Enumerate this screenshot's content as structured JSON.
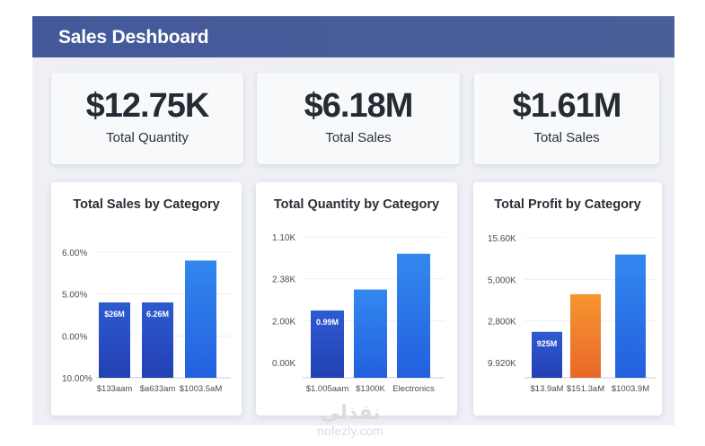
{
  "header": {
    "title": "Sales Deshboard"
  },
  "kpis": [
    {
      "value": "$12.75K",
      "label": "Total Quantity"
    },
    {
      "value": "$6.18M",
      "label": "Total Sales"
    },
    {
      "value": "$1.61M",
      "label": "Total Sales"
    }
  ],
  "colors": {
    "header_bg": "#475c97",
    "bar_dark_blue": "#2a4fc4",
    "bar_blue": "#2f7be6",
    "bar_orange": "#f08a2c",
    "panel_bg": "#eef0f5"
  },
  "chart_data": [
    {
      "type": "bar",
      "title": "Total Sales by Category",
      "xlabel": "",
      "ylabel": "",
      "y_ticks": [
        "10.00%",
        "0.00%",
        "5.00%",
        "6.00%"
      ],
      "ylim": [
        0,
        3
      ],
      "grid": true,
      "categories": [
        "$133aam",
        "$a633am",
        "$1003.5aM"
      ],
      "values": [
        1.8,
        1.8,
        2.8
      ],
      "bar_labels": [
        "$26M",
        "6.26M",
        ""
      ],
      "bar_colors": [
        "#2a4fc4",
        "#2a55cc",
        "#2f7be6"
      ]
    },
    {
      "type": "bar",
      "title": "Total Quantity by Category",
      "xlabel": "",
      "ylabel": "",
      "y_ticks": [
        "0.00K",
        "2.00K",
        "2.38K",
        "1.10K"
      ],
      "ylim": [
        0,
        3.35
      ],
      "grid": true,
      "categories": [
        "$1.005aam",
        "$1300K",
        "Electronics"
      ],
      "values": [
        1.6,
        2.1,
        2.95
      ],
      "bar_labels": [
        "0.99M",
        "",
        ""
      ],
      "bar_colors": [
        "#2a4fc4",
        "#2f7be6",
        "#2f7be6"
      ]
    },
    {
      "type": "bar",
      "title": "Total Profit by Category",
      "xlabel": "",
      "ylabel": "",
      "y_ticks": [
        "9.920K",
        "2,800K",
        "5,000K",
        "15.60K"
      ],
      "ylim": [
        0,
        3.35
      ],
      "grid": true,
      "categories": [
        "$13.9aM",
        "$151.3aM",
        "$1003.9M"
      ],
      "values": [
        1.1,
        2.0,
        2.95
      ],
      "bar_labels": [
        "925M",
        "",
        ""
      ],
      "bar_colors": [
        "#2a4fc4",
        "#f08a2c",
        "#2f7be6"
      ]
    }
  ],
  "watermark": {
    "arabic": "نفذلي",
    "latin": "nofezly.com"
  }
}
